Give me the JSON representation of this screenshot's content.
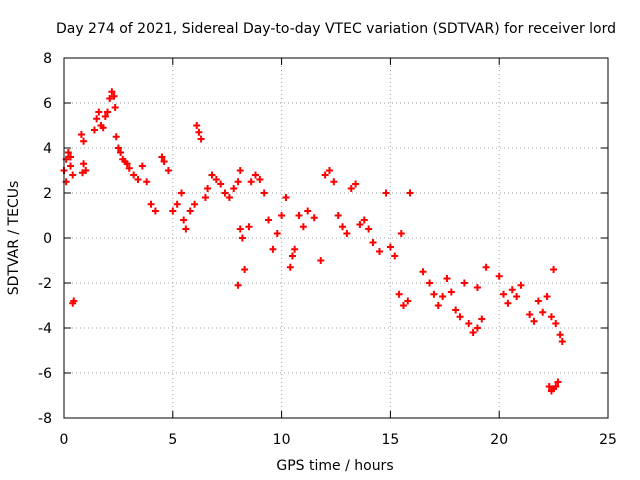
{
  "chart_data": {
    "type": "scatter",
    "title": "Day 274 of 2021, Sidereal Day-to-day VTEC variation (SDTVAR) for receiver lord",
    "xlabel": "GPS time / hours",
    "ylabel": "SDTVAR / TECUs",
    "xlim": [
      0,
      25
    ],
    "ylim": [
      -8,
      8
    ],
    "xticks": [
      0,
      5,
      10,
      15,
      20,
      25
    ],
    "yticks": [
      -8,
      -6,
      -4,
      -2,
      0,
      2,
      4,
      6,
      8
    ],
    "grid": true,
    "marker": "+",
    "series": [
      {
        "name": "SDTVAR",
        "color": "#ff0000",
        "x": [
          0.0,
          0.1,
          0.2,
          0.3,
          0.4,
          0.1,
          0.3,
          0.45,
          0.4,
          0.8,
          0.9,
          1.0,
          0.9,
          0.85,
          1.4,
          1.5,
          1.6,
          1.7,
          1.8,
          1.9,
          2.0,
          2.1,
          2.2,
          2.3,
          2.35,
          2.4,
          2.5,
          2.6,
          2.7,
          2.8,
          2.9,
          3.0,
          3.2,
          3.4,
          3.6,
          3.8,
          4.0,
          4.2,
          4.5,
          4.6,
          4.8,
          5.0,
          5.2,
          5.4,
          5.5,
          5.6,
          5.8,
          6.0,
          6.1,
          6.2,
          6.3,
          6.5,
          6.6,
          6.8,
          7.0,
          7.2,
          7.4,
          7.6,
          7.8,
          8.0,
          8.1,
          8.1,
          8.2,
          8.0,
          8.3,
          8.5,
          8.6,
          8.8,
          9.0,
          9.2,
          9.4,
          9.6,
          9.8,
          10.0,
          10.2,
          10.4,
          10.5,
          10.6,
          10.8,
          11.0,
          11.2,
          11.5,
          11.8,
          12.0,
          12.2,
          12.4,
          12.6,
          12.8,
          13.0,
          13.2,
          13.4,
          13.6,
          13.8,
          14.0,
          14.2,
          14.5,
          14.8,
          15.0,
          15.2,
          15.4,
          15.6,
          15.8,
          15.9,
          15.5,
          16.5,
          16.8,
          17.0,
          17.2,
          17.4,
          17.6,
          17.8,
          18.0,
          18.2,
          18.4,
          18.6,
          18.8,
          19.0,
          19.2,
          19.4,
          19.0,
          20.0,
          20.2,
          20.4,
          20.6,
          20.8,
          21.0,
          21.4,
          21.6,
          21.8,
          22.0,
          22.2,
          22.4,
          22.5,
          22.6,
          22.8,
          22.9,
          22.3,
          22.4,
          22.5,
          22.6,
          22.7
        ],
        "y": [
          3.0,
          3.5,
          3.8,
          3.2,
          2.8,
          2.5,
          3.6,
          -2.8,
          -2.9,
          4.6,
          4.3,
          3.0,
          3.3,
          2.9,
          4.8,
          5.3,
          5.6,
          5.0,
          4.9,
          5.4,
          5.6,
          6.2,
          6.5,
          6.3,
          5.8,
          4.5,
          4.0,
          3.8,
          3.5,
          3.4,
          3.3,
          3.1,
          2.8,
          2.6,
          3.2,
          2.5,
          1.5,
          1.2,
          3.6,
          3.4,
          3.0,
          1.2,
          1.5,
          2.0,
          0.8,
          0.4,
          1.2,
          1.5,
          5.0,
          4.7,
          4.4,
          1.8,
          2.2,
          2.8,
          2.6,
          2.4,
          2.0,
          1.8,
          2.2,
          2.5,
          3.0,
          0.4,
          0.0,
          -2.1,
          -1.4,
          0.5,
          2.5,
          2.8,
          2.6,
          2.0,
          0.8,
          -0.5,
          0.2,
          1.0,
          1.8,
          -1.3,
          -0.8,
          -0.5,
          1.0,
          0.5,
          1.2,
          0.9,
          -1.0,
          2.8,
          3.0,
          2.5,
          1.0,
          0.5,
          0.2,
          2.2,
          2.4,
          0.6,
          0.8,
          0.4,
          -0.2,
          -0.6,
          2.0,
          -0.4,
          -0.8,
          -2.5,
          -3.0,
          -2.8,
          2.0,
          0.2,
          -1.5,
          -2.0,
          -2.5,
          -3.0,
          -2.6,
          -1.8,
          -2.4,
          -3.2,
          -3.5,
          -2.0,
          -3.8,
          -4.2,
          -4.0,
          -3.6,
          -1.3,
          -2.2,
          -1.7,
          -2.5,
          -2.9,
          -2.3,
          -2.6,
          -2.1,
          -3.4,
          -3.7,
          -2.8,
          -3.3,
          -2.6,
          -3.5,
          -1.4,
          -3.8,
          -4.3,
          -4.6,
          -6.6,
          -6.8,
          -6.7,
          -6.6,
          -6.4
        ]
      }
    ]
  }
}
